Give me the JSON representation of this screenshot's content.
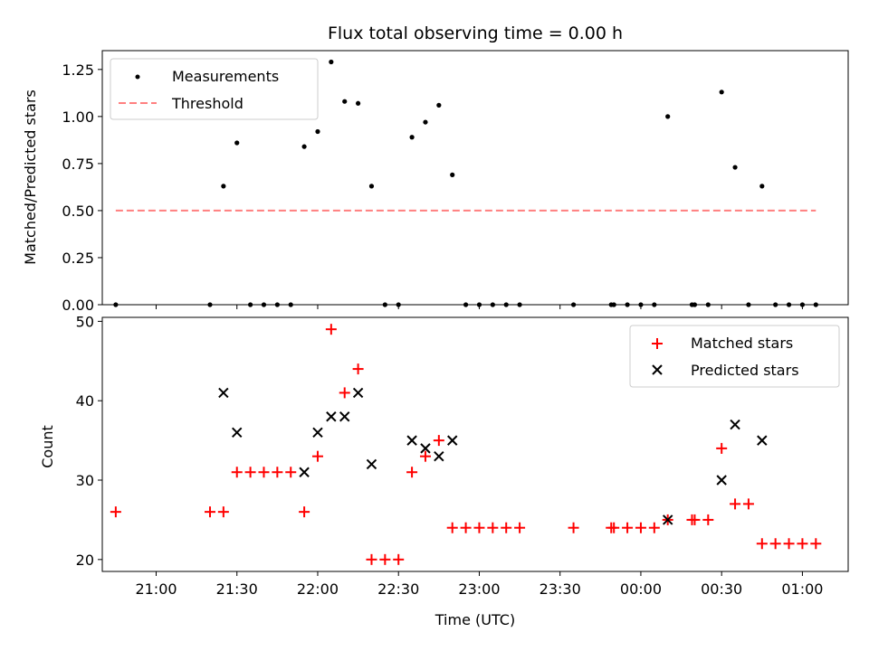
{
  "chart_data": [
    {
      "type": "scatter",
      "title": "Flux total observing time = 0.00 h",
      "ylabel": "Matched/Predicted stars",
      "xlabel": "",
      "xlim": [
        "20:40",
        "01:17"
      ],
      "ylim": [
        0,
        1.35
      ],
      "y_ticks": [
        0.0,
        0.25,
        0.5,
        0.75,
        1.0,
        1.25
      ],
      "y_tick_labels": [
        "0.00",
        "0.25",
        "0.50",
        "0.75",
        "1.00",
        "1.25"
      ],
      "legend_position": "top-left",
      "series": [
        {
          "name": "Measurements",
          "kind": "points",
          "color": "#000000",
          "points": [
            [
              "20:45",
              0
            ],
            [
              "21:20",
              0
            ],
            [
              "21:25",
              0.63
            ],
            [
              "21:30",
              0.86
            ],
            [
              "21:35",
              0
            ],
            [
              "21:40",
              0
            ],
            [
              "21:45",
              0
            ],
            [
              "21:50",
              0
            ],
            [
              "21:55",
              0.84
            ],
            [
              "22:00",
              0.92
            ],
            [
              "22:05",
              1.29
            ],
            [
              "22:10",
              1.08
            ],
            [
              "22:15",
              1.07
            ],
            [
              "22:20",
              0.63
            ],
            [
              "22:25",
              0
            ],
            [
              "22:30",
              0
            ],
            [
              "22:35",
              0.89
            ],
            [
              "22:40",
              0.97
            ],
            [
              "22:45",
              1.06
            ],
            [
              "22:50",
              0.69
            ],
            [
              "22:55",
              0
            ],
            [
              "23:00",
              0
            ],
            [
              "23:05",
              0
            ],
            [
              "23:10",
              0
            ],
            [
              "23:15",
              0
            ],
            [
              "23:35",
              0
            ],
            [
              "23:49",
              0
            ],
            [
              "23:50",
              0
            ],
            [
              "23:55",
              0
            ],
            [
              "00:00",
              0
            ],
            [
              "00:05",
              0
            ],
            [
              "00:10",
              1.0
            ],
            [
              "00:19",
              0
            ],
            [
              "00:20",
              0
            ],
            [
              "00:25",
              0
            ],
            [
              "00:30",
              1.13
            ],
            [
              "00:35",
              0.73
            ],
            [
              "00:40",
              0
            ],
            [
              "00:45",
              0.63
            ],
            [
              "00:50",
              0
            ],
            [
              "00:55",
              0
            ],
            [
              "01:00",
              0
            ],
            [
              "01:05",
              0
            ]
          ]
        },
        {
          "name": "Threshold",
          "kind": "dashed-line",
          "color": "#ff7f7f",
          "points": [
            [
              "20:45",
              0.5
            ],
            [
              "01:05",
              0.5
            ]
          ]
        }
      ]
    },
    {
      "type": "scatter",
      "title": "",
      "ylabel": "Count",
      "xlabel": "Time (UTC)",
      "xlim": [
        "20:40",
        "01:17"
      ],
      "ylim": [
        18.5,
        50.5
      ],
      "y_ticks": [
        20,
        30,
        40,
        50
      ],
      "y_tick_labels": [
        "20",
        "30",
        "40",
        "50"
      ],
      "x_ticks": [
        "21:00",
        "21:30",
        "22:00",
        "22:30",
        "23:00",
        "23:30",
        "00:00",
        "00:30",
        "01:00"
      ],
      "x_tick_labels": [
        "21:00",
        "21:30",
        "22:00",
        "22:30",
        "23:00",
        "23:30",
        "00:00",
        "00:30",
        "01:00"
      ],
      "legend_position": "top-right",
      "series": [
        {
          "name": "Matched stars",
          "kind": "plus-markers",
          "color": "#ff0000",
          "points": [
            [
              "20:45",
              26
            ],
            [
              "21:20",
              26
            ],
            [
              "21:25",
              26
            ],
            [
              "21:30",
              31
            ],
            [
              "21:35",
              31
            ],
            [
              "21:40",
              31
            ],
            [
              "21:45",
              31
            ],
            [
              "21:50",
              31
            ],
            [
              "21:55",
              26
            ],
            [
              "22:00",
              33
            ],
            [
              "22:05",
              49
            ],
            [
              "22:10",
              41
            ],
            [
              "22:15",
              44
            ],
            [
              "22:20",
              20
            ],
            [
              "22:25",
              20
            ],
            [
              "22:30",
              20
            ],
            [
              "22:35",
              31
            ],
            [
              "22:40",
              33
            ],
            [
              "22:45",
              35
            ],
            [
              "22:50",
              24
            ],
            [
              "22:55",
              24
            ],
            [
              "23:00",
              24
            ],
            [
              "23:05",
              24
            ],
            [
              "23:10",
              24
            ],
            [
              "23:15",
              24
            ],
            [
              "23:35",
              24
            ],
            [
              "23:49",
              24
            ],
            [
              "23:50",
              24
            ],
            [
              "23:55",
              24
            ],
            [
              "00:00",
              24
            ],
            [
              "00:05",
              24
            ],
            [
              "00:10",
              25
            ],
            [
              "00:19",
              25
            ],
            [
              "00:20",
              25
            ],
            [
              "00:25",
              25
            ],
            [
              "00:30",
              34
            ],
            [
              "00:35",
              27
            ],
            [
              "00:40",
              27
            ],
            [
              "00:45",
              22
            ],
            [
              "00:50",
              22
            ],
            [
              "00:55",
              22
            ],
            [
              "01:00",
              22
            ],
            [
              "01:05",
              22
            ]
          ]
        },
        {
          "name": "Predicted stars",
          "kind": "x-markers",
          "color": "#000000",
          "points": [
            [
              "21:25",
              41
            ],
            [
              "21:30",
              36
            ],
            [
              "21:55",
              31
            ],
            [
              "22:00",
              36
            ],
            [
              "22:05",
              38
            ],
            [
              "22:10",
              38
            ],
            [
              "22:15",
              41
            ],
            [
              "22:20",
              32
            ],
            [
              "22:35",
              35
            ],
            [
              "22:40",
              34
            ],
            [
              "22:45",
              33
            ],
            [
              "22:50",
              35
            ],
            [
              "00:10",
              25
            ],
            [
              "00:30",
              30
            ],
            [
              "00:35",
              37
            ],
            [
              "00:45",
              35
            ]
          ]
        }
      ]
    }
  ]
}
